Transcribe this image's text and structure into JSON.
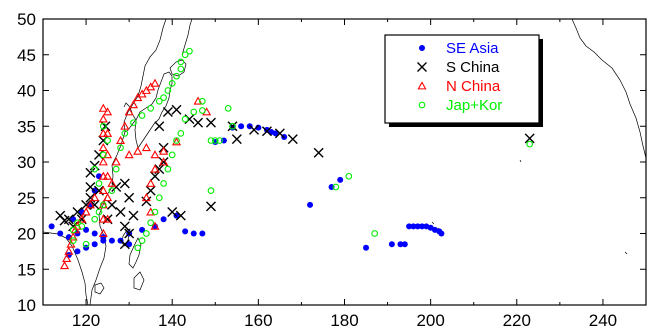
{
  "chart_data": {
    "type": "scatter",
    "xlim": [
      110,
      250
    ],
    "ylim": [
      10,
      50
    ],
    "x_ticks": [
      120,
      140,
      160,
      180,
      200,
      220,
      240
    ],
    "y_ticks": [
      10,
      15,
      20,
      25,
      30,
      35,
      40,
      45,
      50
    ],
    "grid": false,
    "legend_position": "top-right",
    "background_map": "coastlines",
    "series": [
      {
        "name": "SE Asia",
        "marker": "filled-circle",
        "color": "#0000ff",
        "points": [
          [
            112,
            21
          ],
          [
            114,
            20
          ],
          [
            116,
            19.5
          ],
          [
            118,
            20
          ],
          [
            120,
            20.5
          ],
          [
            122,
            20
          ],
          [
            124,
            19.5
          ],
          [
            126,
            19
          ],
          [
            128,
            19
          ],
          [
            130,
            18.5
          ],
          [
            116,
            17
          ],
          [
            118,
            17.5
          ],
          [
            120,
            18
          ],
          [
            122,
            18.5
          ],
          [
            124,
            19
          ],
          [
            117,
            22
          ],
          [
            119,
            23
          ],
          [
            121,
            24
          ],
          [
            122,
            26
          ],
          [
            123,
            28
          ],
          [
            130,
            20
          ],
          [
            133,
            20.5
          ],
          [
            136,
            21
          ],
          [
            138,
            22
          ],
          [
            141,
            22.5
          ],
          [
            143,
            20.3
          ],
          [
            145,
            20
          ],
          [
            147,
            20
          ],
          [
            150,
            32.8
          ],
          [
            152,
            33
          ],
          [
            154,
            34.8
          ],
          [
            156,
            35
          ],
          [
            158,
            35
          ],
          [
            160,
            34.8
          ],
          [
            162,
            34.5
          ],
          [
            163,
            34.2
          ],
          [
            164,
            34
          ],
          [
            166,
            33.5
          ],
          [
            172,
            24
          ],
          [
            177,
            26.5
          ],
          [
            179,
            27.5
          ],
          [
            185,
            18
          ],
          [
            191,
            18.5
          ],
          [
            193,
            18.5
          ],
          [
            194,
            18.5
          ],
          [
            195,
            21
          ],
          [
            196,
            21
          ],
          [
            197,
            21
          ],
          [
            198,
            21
          ],
          [
            199,
            21
          ],
          [
            200,
            20.8
          ],
          [
            201,
            20.5
          ],
          [
            202,
            20.3
          ],
          [
            202.5,
            20
          ]
        ]
      },
      {
        "name": "S China",
        "marker": "x",
        "color": "#000000",
        "points": [
          [
            114,
            22.5
          ],
          [
            115,
            21.8
          ],
          [
            116,
            22
          ],
          [
            117,
            21
          ],
          [
            118,
            23
          ],
          [
            119,
            22
          ],
          [
            120,
            24
          ],
          [
            121,
            25
          ],
          [
            122,
            24
          ],
          [
            123,
            26
          ],
          [
            121,
            26.5
          ],
          [
            121,
            28.5
          ],
          [
            122,
            29.5
          ],
          [
            123,
            31
          ],
          [
            124,
            33
          ],
          [
            124.5,
            35
          ],
          [
            125,
            22
          ],
          [
            126,
            24
          ],
          [
            127,
            26.5
          ],
          [
            128,
            23
          ],
          [
            129,
            21
          ],
          [
            129,
            18.5
          ],
          [
            130,
            20
          ],
          [
            131,
            22.5
          ],
          [
            130,
            25
          ],
          [
            129,
            27
          ],
          [
            134,
            24.5
          ],
          [
            135,
            26
          ],
          [
            136,
            28
          ],
          [
            137,
            29
          ],
          [
            138,
            30
          ],
          [
            138,
            32
          ],
          [
            137,
            35
          ],
          [
            139,
            37
          ],
          [
            141,
            37.3
          ],
          [
            140,
            23
          ],
          [
            142,
            22.5
          ],
          [
            144,
            36
          ],
          [
            146,
            35.5
          ],
          [
            149,
            35.5
          ],
          [
            149,
            23.8
          ],
          [
            154,
            35
          ],
          [
            155,
            33.2
          ],
          [
            159,
            34.5
          ],
          [
            162,
            34.3
          ],
          [
            165,
            34
          ],
          [
            168,
            33.2
          ],
          [
            174,
            31.3
          ],
          [
            223,
            33.3
          ]
        ]
      },
      {
        "name": "N China",
        "marker": "open-triangle",
        "color": "#ff0000",
        "points": [
          [
            115,
            15.5
          ],
          [
            115.5,
            16.5
          ],
          [
            116,
            17.5
          ],
          [
            116.5,
            18.5
          ],
          [
            117,
            19.5
          ],
          [
            117.5,
            20.5
          ],
          [
            118,
            21
          ],
          [
            119,
            22
          ],
          [
            120,
            23
          ],
          [
            121,
            24
          ],
          [
            122,
            25
          ],
          [
            124,
            20
          ],
          [
            124,
            22
          ],
          [
            124,
            24
          ],
          [
            124,
            26
          ],
          [
            124,
            28
          ],
          [
            124,
            30
          ],
          [
            124,
            32
          ],
          [
            124,
            34
          ],
          [
            124,
            36
          ],
          [
            124,
            37.5
          ],
          [
            125,
            22
          ],
          [
            125,
            25
          ],
          [
            125,
            28
          ],
          [
            125,
            31
          ],
          [
            125,
            34
          ],
          [
            125,
            37
          ],
          [
            126,
            27
          ],
          [
            127,
            30
          ],
          [
            128,
            33
          ],
          [
            129,
            35
          ],
          [
            130,
            37
          ],
          [
            131,
            38
          ],
          [
            132,
            39
          ],
          [
            133,
            39.5
          ],
          [
            134,
            40
          ],
          [
            135,
            40.5
          ],
          [
            136,
            41
          ],
          [
            130,
            31
          ],
          [
            132,
            31.5
          ],
          [
            134,
            32
          ],
          [
            136,
            31
          ],
          [
            138,
            30
          ],
          [
            141,
            32.8
          ],
          [
            146,
            38.5
          ],
          [
            148,
            37
          ],
          [
            136,
            21
          ],
          [
            135,
            23
          ],
          [
            134,
            25
          ],
          [
            135,
            27
          ],
          [
            136,
            29
          ],
          [
            138,
            31.5
          ]
        ]
      },
      {
        "name": "Jap+Kor",
        "marker": "open-circle",
        "color": "#00ee00",
        "points": [
          [
            117,
            19
          ],
          [
            117,
            20.5
          ],
          [
            118,
            21.5
          ],
          [
            119,
            21
          ],
          [
            120,
            18.5
          ],
          [
            122,
            22
          ],
          [
            123,
            23
          ],
          [
            124,
            24
          ],
          [
            123,
            27
          ],
          [
            122,
            29
          ],
          [
            124,
            31
          ],
          [
            125,
            33
          ],
          [
            124,
            35
          ],
          [
            126,
            26
          ],
          [
            127,
            29
          ],
          [
            128,
            32
          ],
          [
            129,
            34
          ],
          [
            131,
            35.5
          ],
          [
            133,
            36.5
          ],
          [
            135,
            37.5
          ],
          [
            137,
            38.5
          ],
          [
            138,
            39
          ],
          [
            139,
            40
          ],
          [
            140,
            41
          ],
          [
            141,
            42
          ],
          [
            142,
            43
          ],
          [
            143,
            45
          ],
          [
            132,
            18
          ],
          [
            133,
            19
          ],
          [
            134,
            20
          ],
          [
            135,
            21.5
          ],
          [
            136,
            23
          ],
          [
            137,
            25
          ],
          [
            138,
            27
          ],
          [
            139,
            29
          ],
          [
            140,
            31
          ],
          [
            141,
            33
          ],
          [
            142,
            34
          ],
          [
            143,
            36
          ],
          [
            145,
            37
          ],
          [
            147,
            38.5
          ],
          [
            142,
            44
          ],
          [
            144,
            45.5
          ],
          [
            147,
            37.2
          ],
          [
            149,
            33
          ],
          [
            150,
            33
          ],
          [
            151,
            33
          ],
          [
            149,
            26
          ],
          [
            153,
            37.5
          ],
          [
            154,
            35
          ],
          [
            178,
            26.5
          ],
          [
            181,
            28
          ],
          [
            187,
            20
          ],
          [
            223,
            32.5
          ]
        ]
      }
    ]
  }
}
